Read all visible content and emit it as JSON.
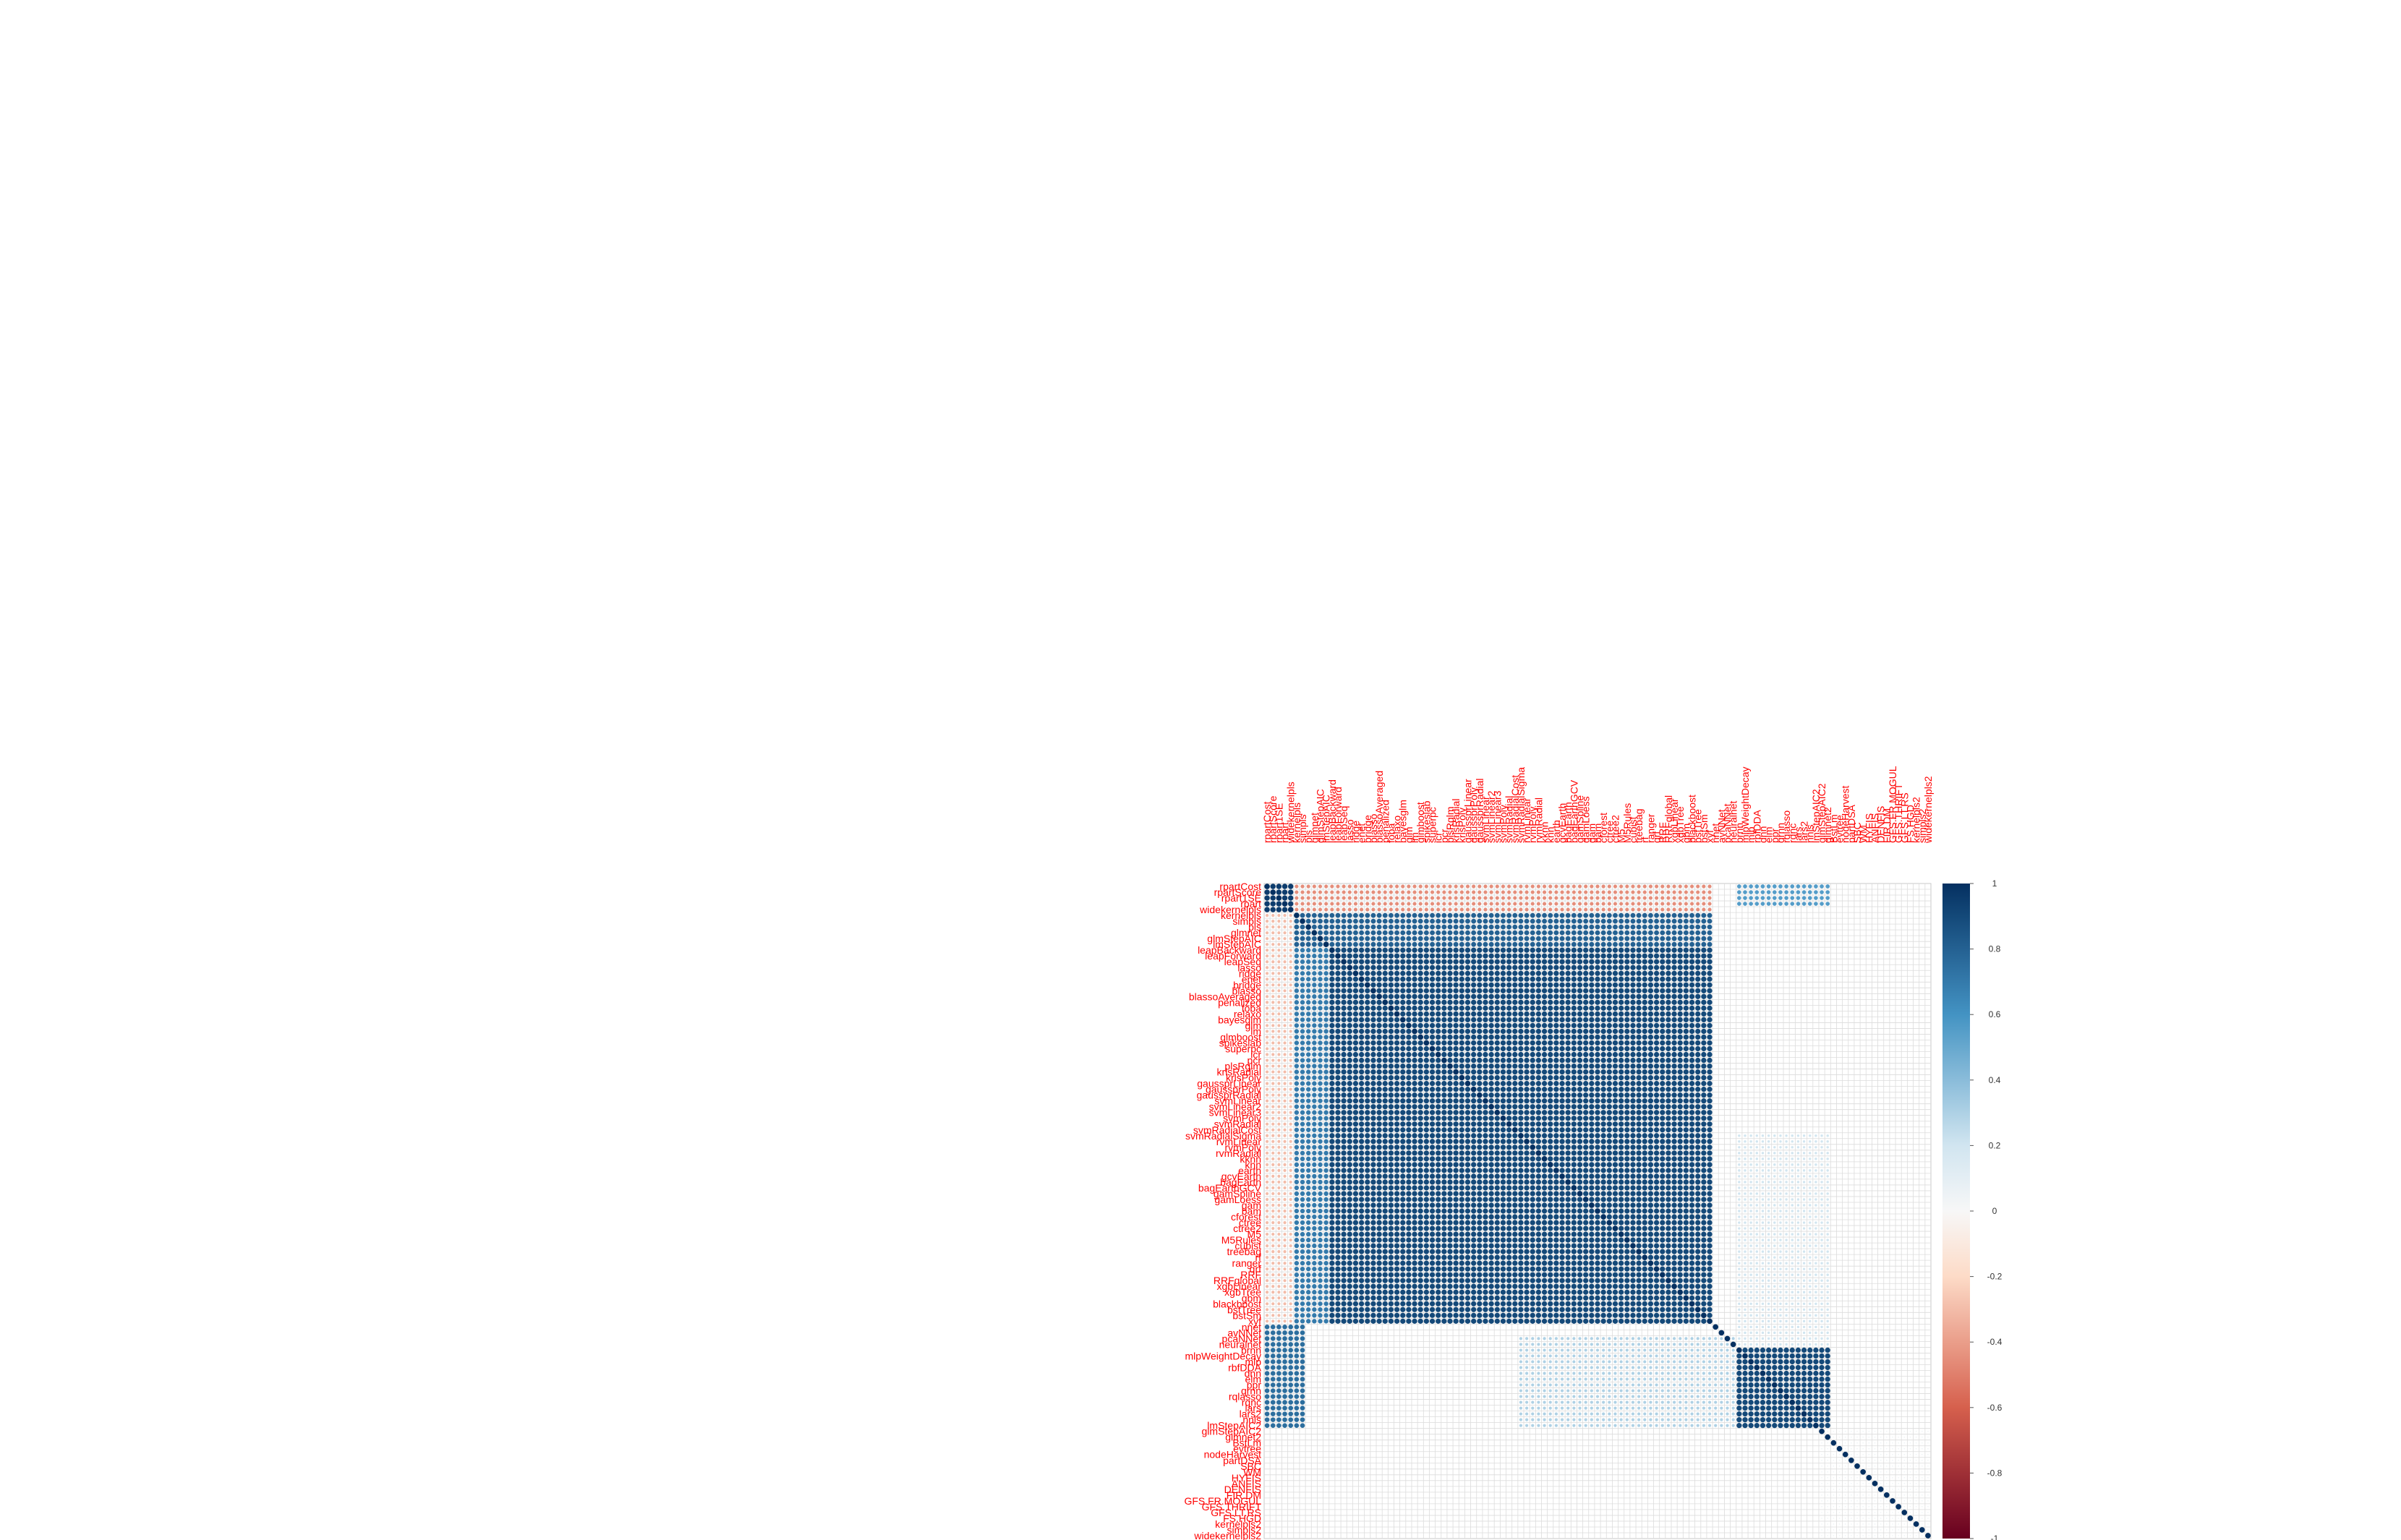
{
  "chart_data": {
    "type": "heatmap",
    "title": "",
    "xlabel": "",
    "ylabel": "",
    "method": "circle",
    "grid": true,
    "value_range": [
      -1,
      1
    ],
    "legend": {
      "placement": "right",
      "ticks": [
        "1",
        "0.8",
        "0.6",
        "0.4",
        "0.2",
        "0",
        "-0.2",
        "-0.4",
        "-0.6",
        "-0.8",
        "-1"
      ]
    },
    "colors": {
      "label": "#ff0000",
      "grid": "#d0d0d0",
      "positive_strong": "#053061",
      "positive_mid": "#4393c3",
      "neutral": "#f7f7f7",
      "negative_mid": "#d6604d",
      "negative_strong": "#67001f"
    },
    "column_labels": [
      "rpartCost",
      "rpartScore",
      "rpart1SE",
      "rpart",
      "widekernelpls",
      "kernelpls",
      "simpls",
      "pls",
      "glmnet",
      "glmStepAIC",
      "lmStepAIC",
      "leapBackward",
      "leapForward",
      "leapSeq",
      "lasso",
      "ridge",
      "enet",
      "bridge",
      "blasso",
      "blassoAveraged",
      "penalized",
      "foba",
      "relaxo",
      "bayesglm",
      "glm",
      "lm",
      "glmboost",
      "spikeslab",
      "superpc",
      "icr",
      "pcr",
      "plsRglm",
      "krlsRadial",
      "krlsPoly",
      "gaussprLinear",
      "gaussprPoly",
      "gaussprRadial",
      "svmLinear",
      "svmLinear2",
      "svmLinear3",
      "svmPoly",
      "svmRadial",
      "svmRadialCost",
      "svmRadialSigma",
      "rvmLinear",
      "rvmPoly",
      "rvmRadial",
      "kknn",
      "knn",
      "earth",
      "gcvEarth",
      "bagEarth",
      "bagEarthGCV",
      "gamSpline",
      "gamLoess",
      "gam",
      "bam",
      "cforest",
      "ctree",
      "ctree2",
      "M5",
      "M5Rules",
      "cubist",
      "treebag",
      "rf",
      "ranger",
      "qrf",
      "RRF",
      "RRFglobal",
      "xgbLinear",
      "xgbTree",
      "gbm",
      "blackboost",
      "bstTree",
      "bstSm",
      "xyf",
      "nnet",
      "avNNet",
      "pcaNNet",
      "neuralnet",
      "brnn",
      "mlpWeightDecay",
      "mlp",
      "rbfDDA",
      "dnn",
      "elm",
      "ppr",
      "qrnn",
      "rqlasso",
      "rqnc",
      "lars",
      "lars2",
      "nnls",
      "lmStepAIC2",
      "glmStepAIC2",
      "glmnet2",
      "BstLm",
      "evtree",
      "nodeHarvest",
      "partDSA",
      "SBC",
      "WM",
      "HYFIS",
      "ANFIS",
      "DENFIS",
      "FIR.DM",
      "GFS.FR.MOGUL",
      "GFS.THRIFT",
      "GFS.LT.RS",
      "FS.HGD",
      "kernelpls2",
      "simpls2",
      "widekernelpls2"
    ],
    "row_labels": [
      "rpartCost",
      "rpartScore",
      "rpart1SE",
      "rpart",
      "widekernelpls",
      "kernelpls",
      "simpls",
      "pls",
      "glmnet",
      "glmStepAIC",
      "lmStepAIC",
      "leapBackward",
      "leapForward",
      "leapSeq",
      "lasso",
      "ridge",
      "enet",
      "bridge",
      "blasso",
      "blassoAveraged",
      "penalized",
      "foba",
      "relaxo",
      "bayesglm",
      "glm",
      "lm",
      "glmboost",
      "spikeslab",
      "superpc",
      "icr",
      "pcr",
      "plsRglm",
      "krlsRadial",
      "krlsPoly",
      "gaussprLinear",
      "gaussprPoly",
      "gaussprRadial",
      "svmLinear",
      "svmLinear2",
      "svmLinear3",
      "svmPoly",
      "svmRadial",
      "svmRadialCost",
      "svmRadialSigma",
      "rvmLinear",
      "rvmPoly",
      "rvmRadial",
      "kknn",
      "knn",
      "earth",
      "gcvEarth",
      "bagEarth",
      "bagEarthGCV",
      "gamSpline",
      "gamLoess",
      "gam",
      "bam",
      "cforest",
      "ctree",
      "ctree2",
      "M5",
      "M5Rules",
      "cubist",
      "treebag",
      "rf",
      "ranger",
      "qrf",
      "RRF",
      "RRFglobal",
      "xgbLinear",
      "xgbTree",
      "gbm",
      "blackboost",
      "bstTree",
      "bstSm",
      "xyf",
      "nnet",
      "avNNet",
      "pcaNNet",
      "neuralnet",
      "brnn",
      "mlpWeightDecay",
      "mlp",
      "rbfDDA",
      "dnn",
      "elm",
      "ppr",
      "qrnn",
      "rqlasso",
      "rqnc",
      "lars",
      "lars2",
      "nnls",
      "lmStepAIC2",
      "glmStepAIC2",
      "glmnet2",
      "BstLm",
      "evtree",
      "nodeHarvest",
      "partDSA",
      "SBC",
      "WM",
      "HYFIS",
      "ANFIS",
      "DENFIS",
      "FIR.DM",
      "GFS.FR.MOGUL",
      "GFS.THRIFT",
      "GFS.LT.RS",
      "FS.HGD",
      "kernelpls2",
      "simpls2",
      "widekernelpls2"
    ],
    "blocks": [
      {
        "rows": [
          0,
          4
        ],
        "cols": [
          0,
          4
        ],
        "value": 0.95
      },
      {
        "rows": [
          0,
          4
        ],
        "cols": [
          5,
          75
        ],
        "value": -0.45
      },
      {
        "rows": [
          5,
          75
        ],
        "cols": [
          0,
          4
        ],
        "value": -0.3
      },
      {
        "rows": [
          5,
          10
        ],
        "cols": [
          5,
          75
        ],
        "value": 0.8
      },
      {
        "rows": [
          11,
          75
        ],
        "cols": [
          11,
          75
        ],
        "value": 0.9
      },
      {
        "rows": [
          11,
          75
        ],
        "cols": [
          5,
          10
        ],
        "value": 0.7
      },
      {
        "rows": [
          76,
          93
        ],
        "cols": [
          0,
          6
        ],
        "value": 0.75
      },
      {
        "rows": [
          0,
          3
        ],
        "cols": [
          80,
          95
        ],
        "value": 0.55
      },
      {
        "rows": [
          76,
          93
        ],
        "cols": [
          80,
          95
        ],
        "value": 0.9
      },
      {
        "rows": [
          78,
          93
        ],
        "cols": [
          43,
          79
        ],
        "value": 0.3
      },
      {
        "rows": [
          43,
          79
        ],
        "cols": [
          80,
          95
        ],
        "value": 0.2
      },
      {
        "rows": [
          94,
          114
        ],
        "cols": [
          94,
          114
        ],
        "value": 0.05
      }
    ],
    "diagonal_value": 1
  }
}
